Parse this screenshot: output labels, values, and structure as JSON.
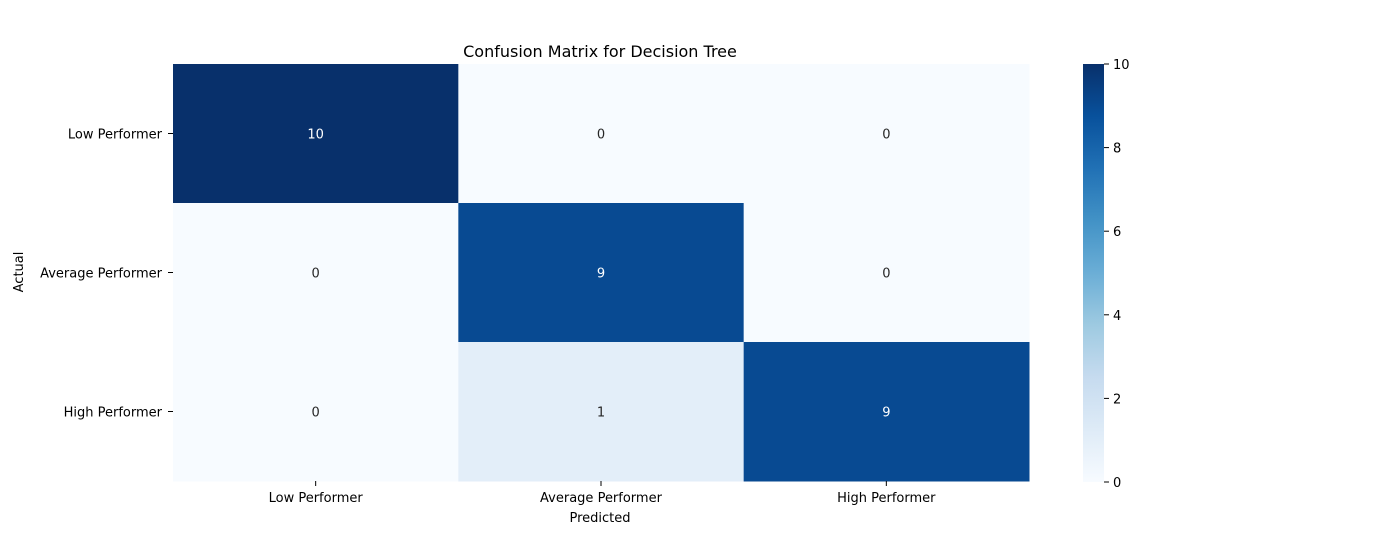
{
  "chart_data": {
    "type": "heatmap",
    "title": "Confusion Matrix for Decision Tree",
    "xlabel": "Predicted",
    "ylabel": "Actual",
    "x_categories": [
      "Low Performer",
      "Average Performer",
      "High Performer"
    ],
    "y_categories": [
      "Low Performer",
      "Average Performer",
      "High Performer"
    ],
    "values": [
      [
        10,
        0,
        0
      ],
      [
        0,
        9,
        0
      ],
      [
        0,
        1,
        9
      ]
    ],
    "colorbar": {
      "range": [
        0,
        10
      ],
      "ticks": [
        "0",
        "2",
        "4",
        "6",
        "8",
        "10"
      ],
      "colormap": "Blues",
      "low_color": "#f7fbff",
      "high_color": "#08306b"
    },
    "annotation_colors": {
      "on_dark": "#ffffff",
      "on_light": "#262626"
    },
    "legend": "colorbar-right"
  }
}
